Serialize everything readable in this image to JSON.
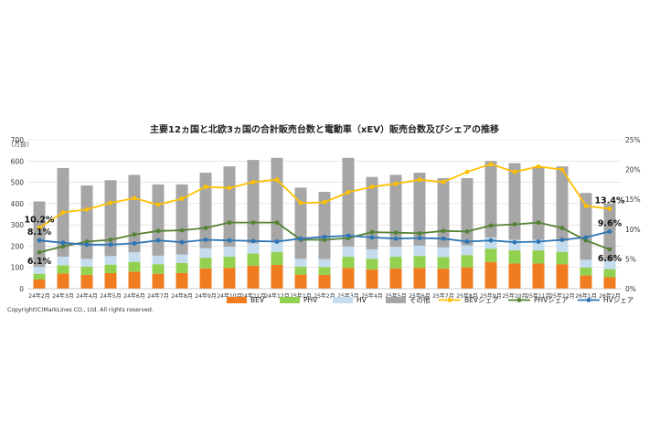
{
  "chart_data": {
    "type": "bar",
    "title": "主要12ヵ国と北欧3ヵ国の合計販売台数と電動車（xEV）販売台数及びシェアの推移",
    "left_unit": "（万台）",
    "categories": [
      "24年2月",
      "24年3月",
      "24年4月",
      "24年5月",
      "24年6月",
      "24年7月",
      "24年8月",
      "24年9月",
      "24年10月",
      "24年11月",
      "24年12月",
      "25年1月",
      "25年2月",
      "25年3月",
      "25年4月",
      "25年5月",
      "25年6月",
      "25年7月",
      "25年8月",
      "25年9月",
      "25年10月",
      "25年11月",
      "25年12月",
      "26年1月",
      "26年2月"
    ],
    "left_axis": {
      "min": 0,
      "max": 700,
      "ticks": [
        "0",
        "100",
        "200",
        "300",
        "400",
        "500",
        "600",
        "700"
      ]
    },
    "right_axis": {
      "min": 0,
      "max": 25,
      "ticks": [
        "0%",
        "5%",
        "10%",
        "15%",
        "20%",
        "25%"
      ]
    },
    "stacked_series": [
      {
        "name": "BEV",
        "color": "#f07c1f",
        "values": [
          43,
          72,
          65,
          73,
          80,
          70,
          74,
          95,
          98,
          108,
          112,
          66,
          65,
          97,
          90,
          95,
          97,
          94,
          100,
          125,
          118,
          118,
          115,
          62,
          54
        ]
      },
      {
        "name": "PHV",
        "color": "#92d050",
        "values": [
          27,
          38,
          38,
          40,
          46,
          45,
          47,
          50,
          52,
          57,
          60,
          37,
          37,
          53,
          50,
          55,
          57,
          55,
          58,
          63,
          62,
          62,
          58,
          38,
          38
        ]
      },
      {
        "name": "HV",
        "color": "#c5dcef",
        "values": [
          33,
          40,
          37,
          40,
          45,
          40,
          40,
          45,
          47,
          48,
          48,
          37,
          37,
          48,
          45,
          47,
          48,
          45,
          45,
          52,
          50,
          50,
          50,
          36,
          38
        ]
      },
      {
        "name": "その他",
        "color": "#a6a6a6",
        "values": [
          307,
          417,
          345,
          357,
          364,
          335,
          329,
          355,
          378,
          392,
          395,
          335,
          316,
          417,
          340,
          338,
          343,
          326,
          317,
          360,
          360,
          345,
          352,
          314,
          270
        ]
      }
    ],
    "line_series": [
      {
        "name": "BEVシェア",
        "color": "#ffc000",
        "values": [
          10.2,
          12.8,
          13.3,
          14.4,
          15.2,
          14.1,
          15.1,
          17.1,
          16.9,
          17.9,
          18.3,
          14.4,
          14.5,
          16.2,
          17.1,
          17.6,
          18.3,
          17.9,
          19.6,
          20.9,
          19.6,
          20.5,
          20.0,
          13.9,
          13.4
        ]
      },
      {
        "name": "PHVシェア",
        "color": "#548235",
        "values": [
          6.1,
          7.1,
          7.9,
          8.2,
          9.1,
          9.7,
          9.8,
          10.2,
          11.1,
          11.1,
          11.1,
          8.2,
          8.2,
          8.5,
          9.5,
          9.4,
          9.3,
          9.7,
          9.6,
          10.6,
          10.8,
          11.1,
          10.2,
          8.1,
          6.6
        ]
      },
      {
        "name": "HVシェア",
        "color": "#2e75b6",
        "values": [
          8.1,
          7.7,
          7.4,
          7.4,
          7.6,
          8.1,
          7.8,
          8.2,
          8.1,
          8.0,
          7.9,
          8.4,
          8.7,
          8.9,
          8.6,
          8.4,
          8.5,
          8.4,
          7.9,
          8.1,
          7.8,
          7.9,
          8.2,
          8.6,
          9.6
        ]
      }
    ],
    "annotations": [
      {
        "text": "10.2%",
        "series": "BEVシェア",
        "index": 0,
        "pos": "above"
      },
      {
        "text": "8.1%",
        "series": "HVシェア",
        "index": 0,
        "pos": "above"
      },
      {
        "text": "6.1%",
        "series": "PHVシェア",
        "index": 0,
        "pos": "below"
      },
      {
        "text": "13.4%",
        "series": "BEVシェア",
        "index": 24,
        "pos": "above"
      },
      {
        "text": "9.6%",
        "series": "HVシェア",
        "index": 24,
        "pos": "above"
      },
      {
        "text": "6.6%",
        "series": "PHVシェア",
        "index": 24,
        "pos": "below"
      }
    ],
    "legend_placement": "bottom",
    "grid": true
  },
  "copyright": "Copyright(C)MarkLines CO., Ltd. All rights reserved."
}
